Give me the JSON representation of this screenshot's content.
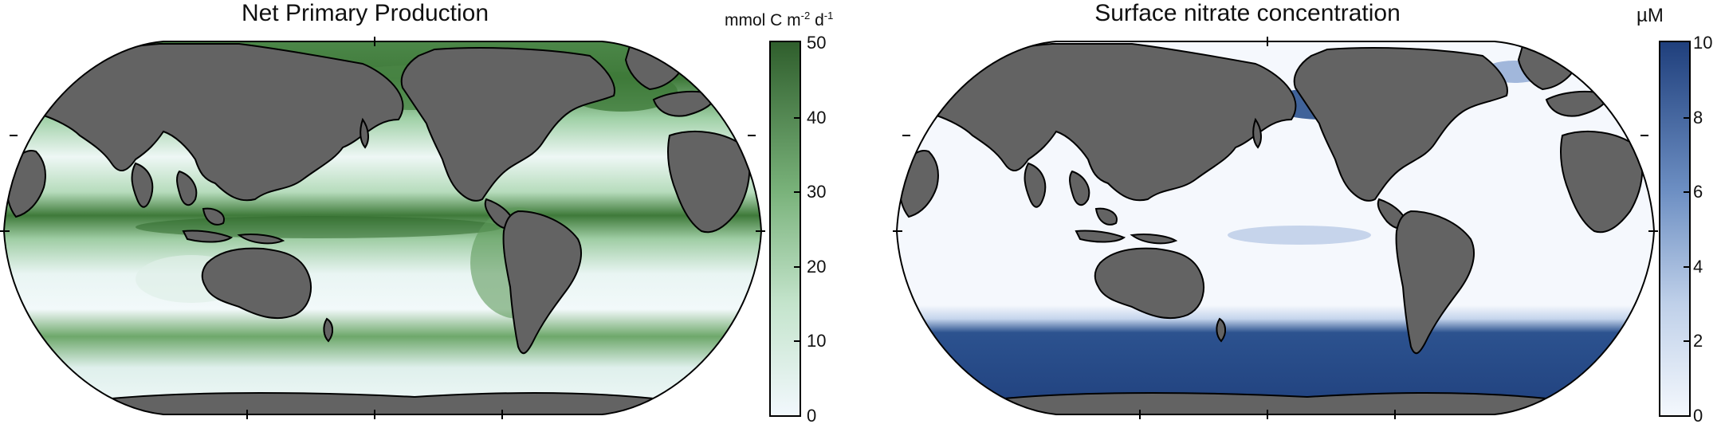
{
  "panels": [
    {
      "title": "Net Primary Production",
      "colorbar": {
        "unit_text": "mmol C m",
        "unit_sup1": "-2",
        "unit_mid": " d",
        "unit_sup2": "-1",
        "ticks": [
          "0",
          "10",
          "20",
          "30",
          "40",
          "50"
        ],
        "range": [
          0,
          50
        ],
        "color_low": "#f2f8fd",
        "color_high": "#2f5e2c"
      }
    },
    {
      "title": "Surface nitrate concentration",
      "colorbar": {
        "unit_text": "µM",
        "ticks": [
          "0",
          "2",
          "4",
          "6",
          "8",
          "10"
        ],
        "range": [
          0,
          10
        ],
        "color_low": "#f4f8fd",
        "color_high": "#1f3f7c"
      }
    }
  ],
  "colors": {
    "land": "#636363",
    "coast": "#000000",
    "npp_high": "#3f7a3a",
    "npp_mid": "#8fc59a",
    "npp_low": "#eef7f7",
    "nitrate_high": "#244a8a",
    "nitrate_low": "#f5f8fd"
  }
}
